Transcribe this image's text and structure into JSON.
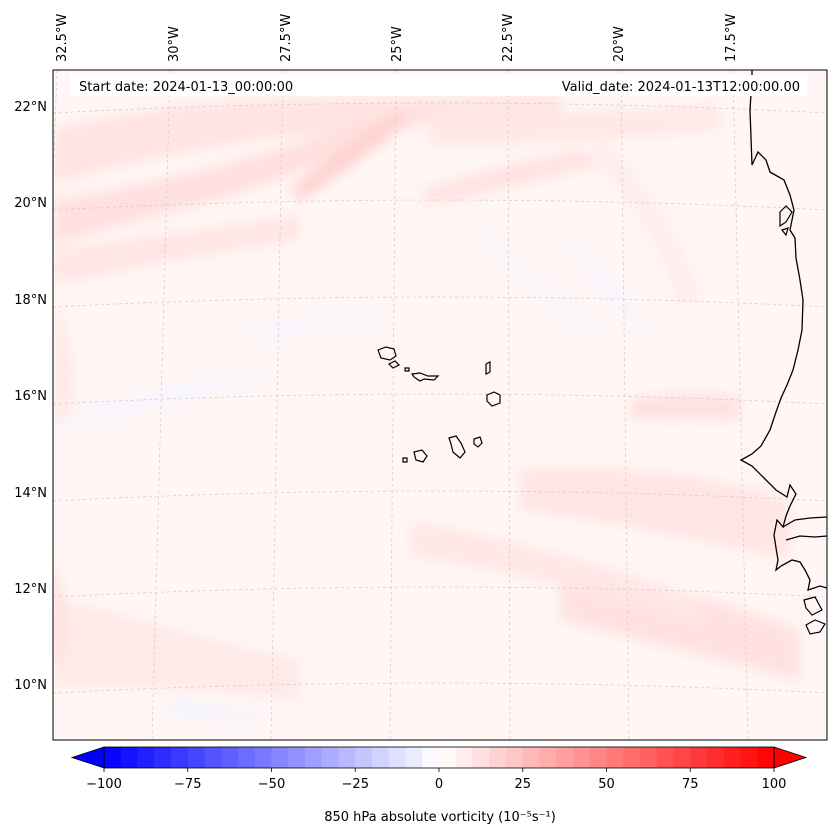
{
  "map": {
    "header": {
      "start_date": "Start date: 2024-01-13_00:00:00",
      "valid_date": "Valid_date: 2024-01-13T12:00:00.00"
    },
    "lon_labels": [
      "32.5°W",
      "30°W",
      "27.5°W",
      "25°W",
      "22.5°W",
      "20°W",
      "17.5°W"
    ],
    "lat_labels": [
      "22°N",
      "20°N",
      "18°N",
      "16°N",
      "14°N",
      "12°N",
      "10°N"
    ],
    "features": [
      "coastline-africa",
      "cape-verde-islands"
    ],
    "field_colors": {
      "positive": "#ff0000",
      "negative": "#0000ff",
      "zero": "#ffffff"
    }
  },
  "colorbar": {
    "label": "850 hPa absolute vorticity (10⁻⁵s⁻¹)",
    "tick_labels": [
      "−100",
      "−75",
      "−50",
      "−25",
      "0",
      "25",
      "50",
      "75",
      "100"
    ],
    "vmin": -100,
    "vmax": 100,
    "levels": 41,
    "extend": "both",
    "colormap": "bwr"
  }
}
